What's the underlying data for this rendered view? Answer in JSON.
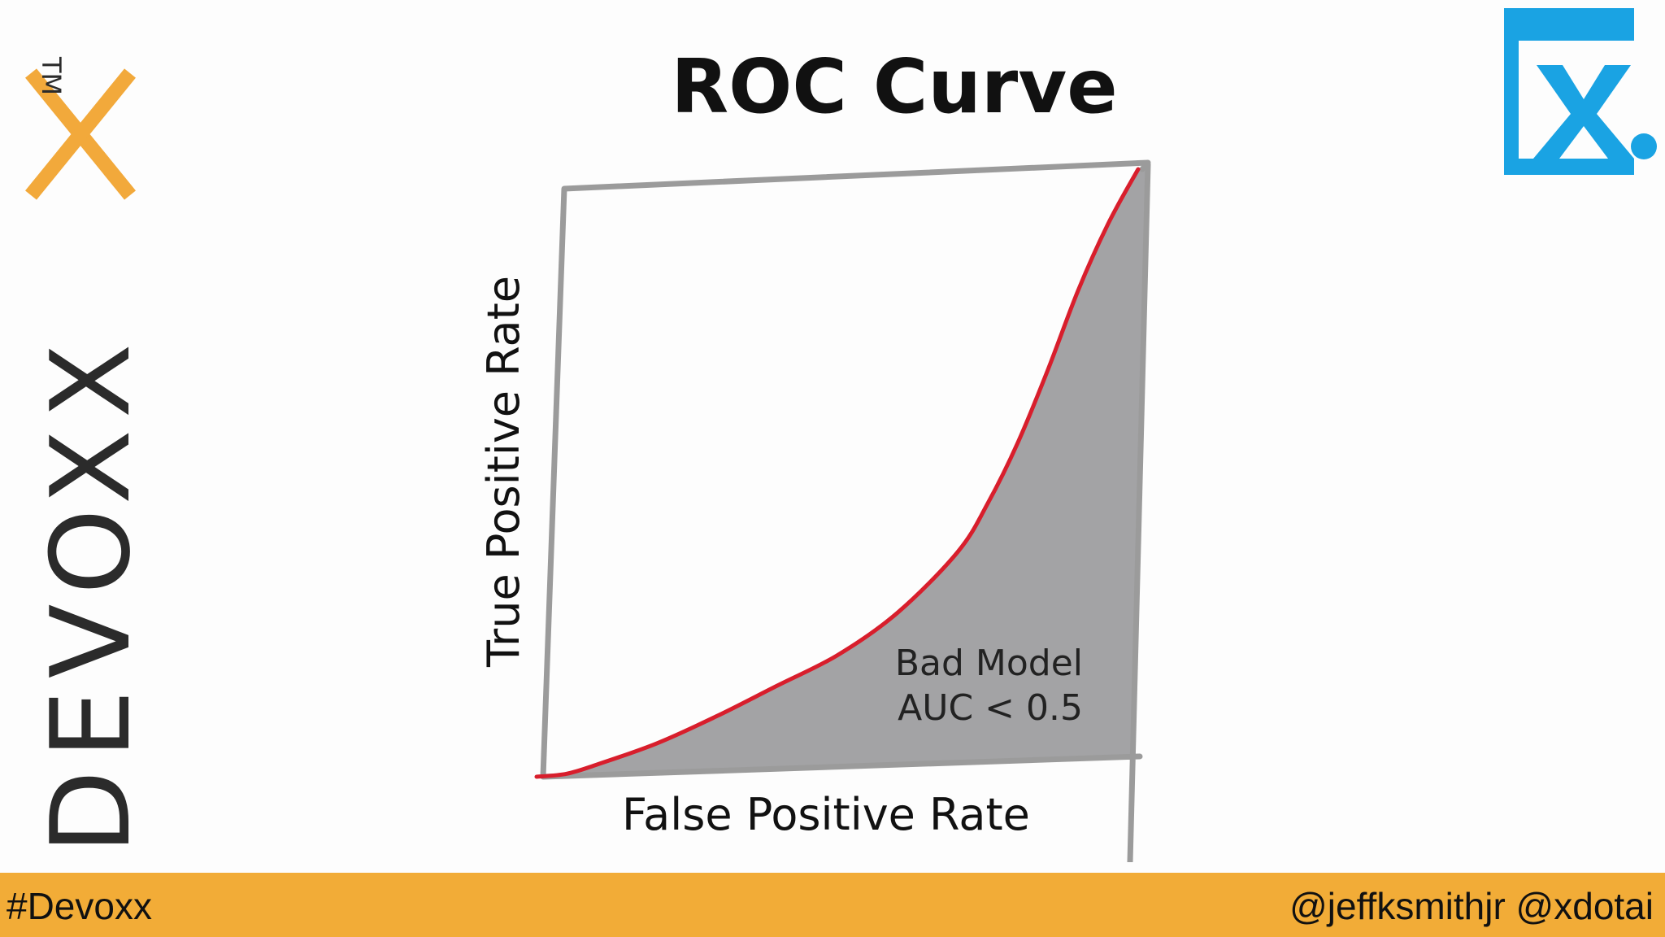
{
  "slide": {
    "title": "ROC Curve"
  },
  "branding": {
    "left_logo_text": "DEVOXX",
    "left_logo_tm": "TM",
    "left_logo_icon": "devoxx-logo-icon",
    "right_logo_icon": "x-dot-logo-icon",
    "accent_color": "#f2ac37",
    "logo_dark_color": "#2b2b2b",
    "x_logo_color": "#1aa3e3"
  },
  "footer": {
    "hashtag": "#Devoxx",
    "handles": "@jeffksmithjr @xdotai"
  },
  "chart_data": {
    "type": "area",
    "title": "ROC Curve",
    "xlabel": "False Positive Rate",
    "ylabel": "True Positive Rate",
    "xlim": [
      0,
      1
    ],
    "ylim": [
      0,
      1
    ],
    "grid": false,
    "legend": "none",
    "curve_color": "#d81e2c",
    "fill_color": "#a3a3a5",
    "frame_color": "#9b9b9b",
    "x": [
      0.0,
      0.05,
      0.1,
      0.2,
      0.3,
      0.4,
      0.5,
      0.6,
      0.7,
      0.75,
      0.8,
      0.85,
      0.9,
      0.95,
      1.0
    ],
    "y": [
      0.0,
      0.005,
      0.02,
      0.055,
      0.1,
      0.15,
      0.2,
      0.27,
      0.37,
      0.45,
      0.55,
      0.67,
      0.8,
      0.91,
      1.0
    ],
    "annotation": {
      "line1": "Bad Model",
      "line2": "AUC < 0.5"
    }
  }
}
